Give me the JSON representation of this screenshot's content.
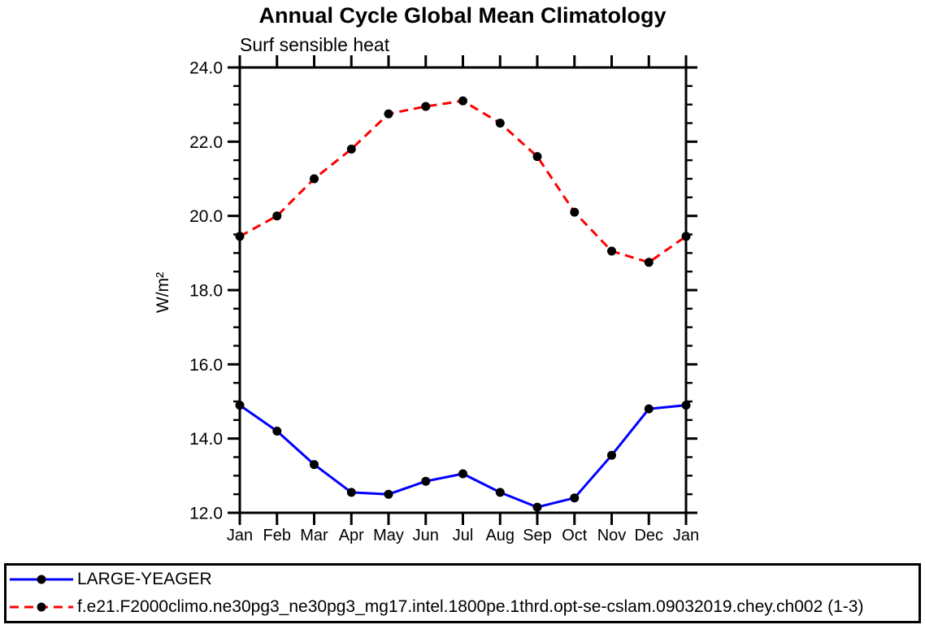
{
  "chart_data": {
    "type": "line",
    "title": "Annual Cycle Global Mean Climatology",
    "subtitle": "Surf sensible heat",
    "ylabel": "W/m²",
    "x_categories": [
      "Jan",
      "Feb",
      "Mar",
      "Apr",
      "May",
      "Jun",
      "Jul",
      "Aug",
      "Sep",
      "Oct",
      "Nov",
      "Dec",
      "Jan"
    ],
    "ylim": [
      12.0,
      24.0
    ],
    "ytick_major_labels": [
      "24.0",
      "22.0",
      "20.0",
      "18.0",
      "16.0",
      "14.0",
      "12.0"
    ],
    "ytick_major_values": [
      24.0,
      22.0,
      20.0,
      18.0,
      16.0,
      14.0,
      12.0
    ],
    "ytick_minor_interval": 0.5,
    "grid": false,
    "legend_position": "bottom",
    "axis_color": "#000000",
    "marker_color": "#000000",
    "series": [
      {
        "name": "LARGE-YEAGER",
        "color": "#0000ff",
        "style": "solid",
        "marker": "circle",
        "values": [
          14.9,
          14.2,
          13.3,
          12.55,
          12.5,
          12.85,
          13.05,
          12.55,
          12.15,
          12.4,
          13.55,
          14.8,
          14.9
        ]
      },
      {
        "name": "f.e21.F2000climo.ne30pg3_ne30pg3_mg17.intel.1800pe.1thrd.opt-se-cslam.09032019.chey.ch002 (1-3)",
        "color": "#ff0000",
        "style": "dashed",
        "marker": "circle",
        "values": [
          19.45,
          20.0,
          21.0,
          21.8,
          22.75,
          22.95,
          23.1,
          22.5,
          21.6,
          20.1,
          19.05,
          18.75,
          19.45
        ]
      }
    ]
  }
}
